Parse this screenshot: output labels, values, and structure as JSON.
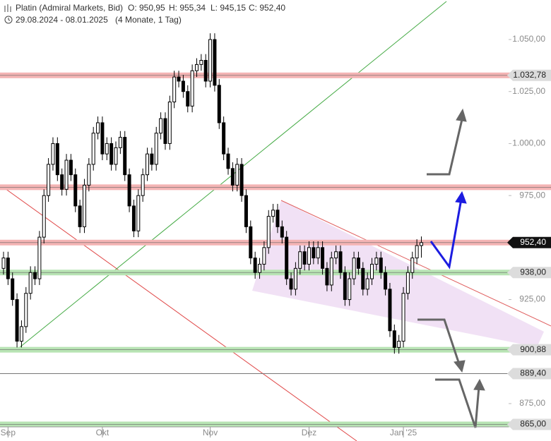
{
  "chart_data": {
    "type": "candlestick",
    "title": "Platin (Admiral Markets, Bid)",
    "ohlc_text": [
      "O: 950,95",
      "H: 955,34",
      "L: 945,15",
      "C: 952,40"
    ],
    "date_range": "29.08.2024 - 08.01.2025",
    "period": "(4 Monate, 1 Tag)",
    "ylim": [
      863.8,
      1069.0
    ],
    "yticks": [
      {
        "value": 1050,
        "label": "1.050,00"
      },
      {
        "value": 1025,
        "label": "1.025,00"
      },
      {
        "value": 1000,
        "label": "1.000,00"
      },
      {
        "value": 975,
        "label": "975,00"
      },
      {
        "value": 925,
        "label": "925,00"
      },
      {
        "value": 875,
        "label": "875,00"
      }
    ],
    "xticks": [
      {
        "value": 1,
        "label": "Sep"
      },
      {
        "value": 22,
        "label": "Okt"
      },
      {
        "value": 46,
        "label": "Nov"
      },
      {
        "value": 68,
        "label": "Dez"
      },
      {
        "value": 89,
        "label": "Jan '25"
      }
    ],
    "up_color": "#ffffff",
    "down_color": "#000000",
    "open": [
      940,
      945,
      935,
      925,
      905,
      912,
      928,
      938,
      935,
      955,
      975,
      990,
      1000,
      985,
      978,
      992,
      985,
      970,
      960,
      980,
      990,
      1005,
      1010,
      995,
      1000,
      990,
      998,
      1003,
      985,
      970,
      958,
      975,
      985,
      995,
      990,
      1005,
      1012,
      1000,
      1020,
      1032,
      1030,
      1025,
      1018,
      1035,
      1038,
      1040,
      1030,
      1050,
      1028,
      1010,
      995,
      988,
      980,
      990,
      975,
      960,
      945,
      938,
      942,
      950,
      965,
      968,
      960,
      955,
      935,
      930,
      940,
      948,
      942,
      950,
      945,
      950,
      940,
      932,
      945,
      948,
      938,
      925,
      935,
      945,
      940,
      930,
      935,
      942,
      945,
      938,
      930,
      910,
      902,
      905,
      928,
      938,
      945,
      950.95
    ],
    "high": [
      948,
      948,
      938,
      928,
      915,
      931,
      941,
      941,
      958,
      978,
      993,
      1003,
      1003,
      988,
      995,
      995,
      988,
      973,
      983,
      993,
      1008,
      1013,
      1013,
      1003,
      1003,
      1001,
      1006,
      1006,
      988,
      973,
      978,
      988,
      998,
      998,
      1008,
      1015,
      1015,
      1023,
      1035,
      1035,
      1033,
      1028,
      1038,
      1041,
      1043,
      1043,
      1053,
      1053,
      1031,
      1013,
      998,
      991,
      993,
      993,
      978,
      963,
      948,
      945,
      953,
      968,
      971,
      971,
      963,
      958,
      938,
      943,
      951,
      951,
      953,
      953,
      953,
      953,
      943,
      948,
      951,
      951,
      941,
      938,
      948,
      948,
      943,
      938,
      945,
      948,
      948,
      941,
      933,
      913,
      908,
      931,
      941,
      948,
      954,
      955.34
    ],
    "low": [
      937,
      932,
      922,
      902,
      902,
      909,
      925,
      932,
      932,
      952,
      972,
      987,
      982,
      975,
      975,
      982,
      967,
      957,
      957,
      977,
      987,
      1002,
      992,
      992,
      987,
      987,
      995,
      982,
      967,
      955,
      955,
      972,
      982,
      987,
      987,
      1002,
      997,
      997,
      1017,
      1027,
      1022,
      1015,
      1015,
      1032,
      1035,
      1027,
      1027,
      1025,
      1007,
      992,
      985,
      977,
      977,
      972,
      957,
      942,
      935,
      935,
      939,
      947,
      962,
      957,
      952,
      932,
      927,
      927,
      937,
      939,
      939,
      942,
      942,
      937,
      929,
      929,
      942,
      935,
      922,
      922,
      932,
      937,
      927,
      927,
      932,
      939,
      935,
      927,
      907,
      899,
      899,
      902,
      925,
      935,
      942,
      945.15
    ],
    "close": [
      945,
      935,
      925,
      905,
      912,
      928,
      938,
      935,
      955,
      975,
      990,
      1000,
      985,
      978,
      992,
      985,
      970,
      960,
      980,
      990,
      1005,
      1010,
      995,
      1000,
      990,
      998,
      1003,
      985,
      970,
      958,
      975,
      985,
      995,
      990,
      1005,
      1012,
      1000,
      1020,
      1032,
      1030,
      1025,
      1018,
      1035,
      1038,
      1040,
      1030,
      1050,
      1028,
      1010,
      995,
      988,
      980,
      990,
      975,
      960,
      945,
      938,
      942,
      950,
      965,
      968,
      960,
      955,
      935,
      930,
      940,
      948,
      942,
      950,
      945,
      950,
      940,
      932,
      945,
      948,
      938,
      925,
      935,
      945,
      940,
      930,
      935,
      942,
      945,
      938,
      930,
      910,
      902,
      905,
      928,
      938,
      945,
      950.95,
      952.4
    ],
    "levels": [
      {
        "value": 1032.78,
        "label": "1.032,78",
        "style": "resistance",
        "color": "#f4b4b4"
      },
      {
        "value": 979,
        "style": "resistance",
        "color": "#f4b4b4"
      },
      {
        "value": 952.4,
        "label": "952,40",
        "style": "current",
        "color": "#f4b4b4"
      },
      {
        "value": 938,
        "label": "938,00",
        "style": "support",
        "color": "#b8e4b4"
      },
      {
        "value": 900.88,
        "label": "900,88",
        "style": "support",
        "color": "#b8e4b4"
      },
      {
        "value": 889.4,
        "label": "889,40",
        "style": "line",
        "color": "#777777"
      },
      {
        "value": 865,
        "label": "865,00",
        "style": "support",
        "color": "#b8e4b4"
      }
    ]
  }
}
